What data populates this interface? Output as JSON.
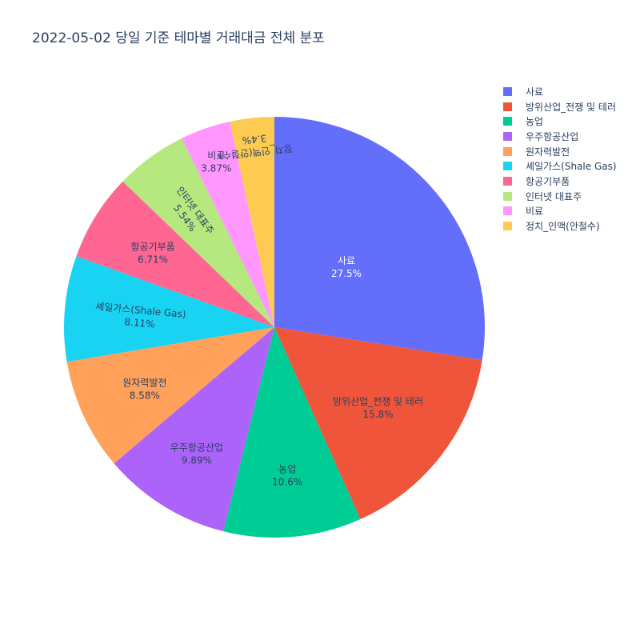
{
  "title": "2022-05-02 당일 기준 테마별 거래대금 전체 분포",
  "chart_data": {
    "type": "pie",
    "title": "2022-05-02 당일 기준 테마별 거래대금 전체 분포",
    "legend_position": "top-right",
    "slices": [
      {
        "label": "사료",
        "value": 27.5,
        "percent_text": "27.5%",
        "color": "#636efa",
        "label_color": "#ffffff"
      },
      {
        "label": "방위산업_전쟁 및 테러",
        "value": 15.8,
        "percent_text": "15.8%",
        "color": "#ef553b",
        "label_color": "#2a3f5f"
      },
      {
        "label": "농업",
        "value": 10.6,
        "percent_text": "10.6%",
        "color": "#00cc96",
        "label_color": "#2a3f5f"
      },
      {
        "label": "우주항공산업",
        "value": 9.89,
        "percent_text": "9.89%",
        "color": "#ab63fa",
        "label_color": "#2a3f5f"
      },
      {
        "label": "원자력발전",
        "value": 8.58,
        "percent_text": "8.58%",
        "color": "#ffa15a",
        "label_color": "#2a3f5f"
      },
      {
        "label": "셰일가스(Shale Gas)",
        "value": 8.11,
        "percent_text": "8.11%",
        "color": "#19d3f3",
        "label_color": "#2a3f5f"
      },
      {
        "label": "항공기부품",
        "value": 6.71,
        "percent_text": "6.71%",
        "color": "#ff6692",
        "label_color": "#2a3f5f"
      },
      {
        "label": "인터넷 대표주",
        "value": 5.54,
        "percent_text": "5.54%",
        "color": "#b6e880",
        "label_color": "#2a3f5f"
      },
      {
        "label": "비료",
        "value": 3.87,
        "percent_text": "3.87%",
        "color": "#ff97ff",
        "label_color": "#2a3f5f"
      },
      {
        "label": "정치_인맥(안철수)",
        "value": 3.4,
        "percent_text": "3.4%",
        "color": "#fecb52",
        "label_color": "#2a3f5f"
      }
    ]
  }
}
